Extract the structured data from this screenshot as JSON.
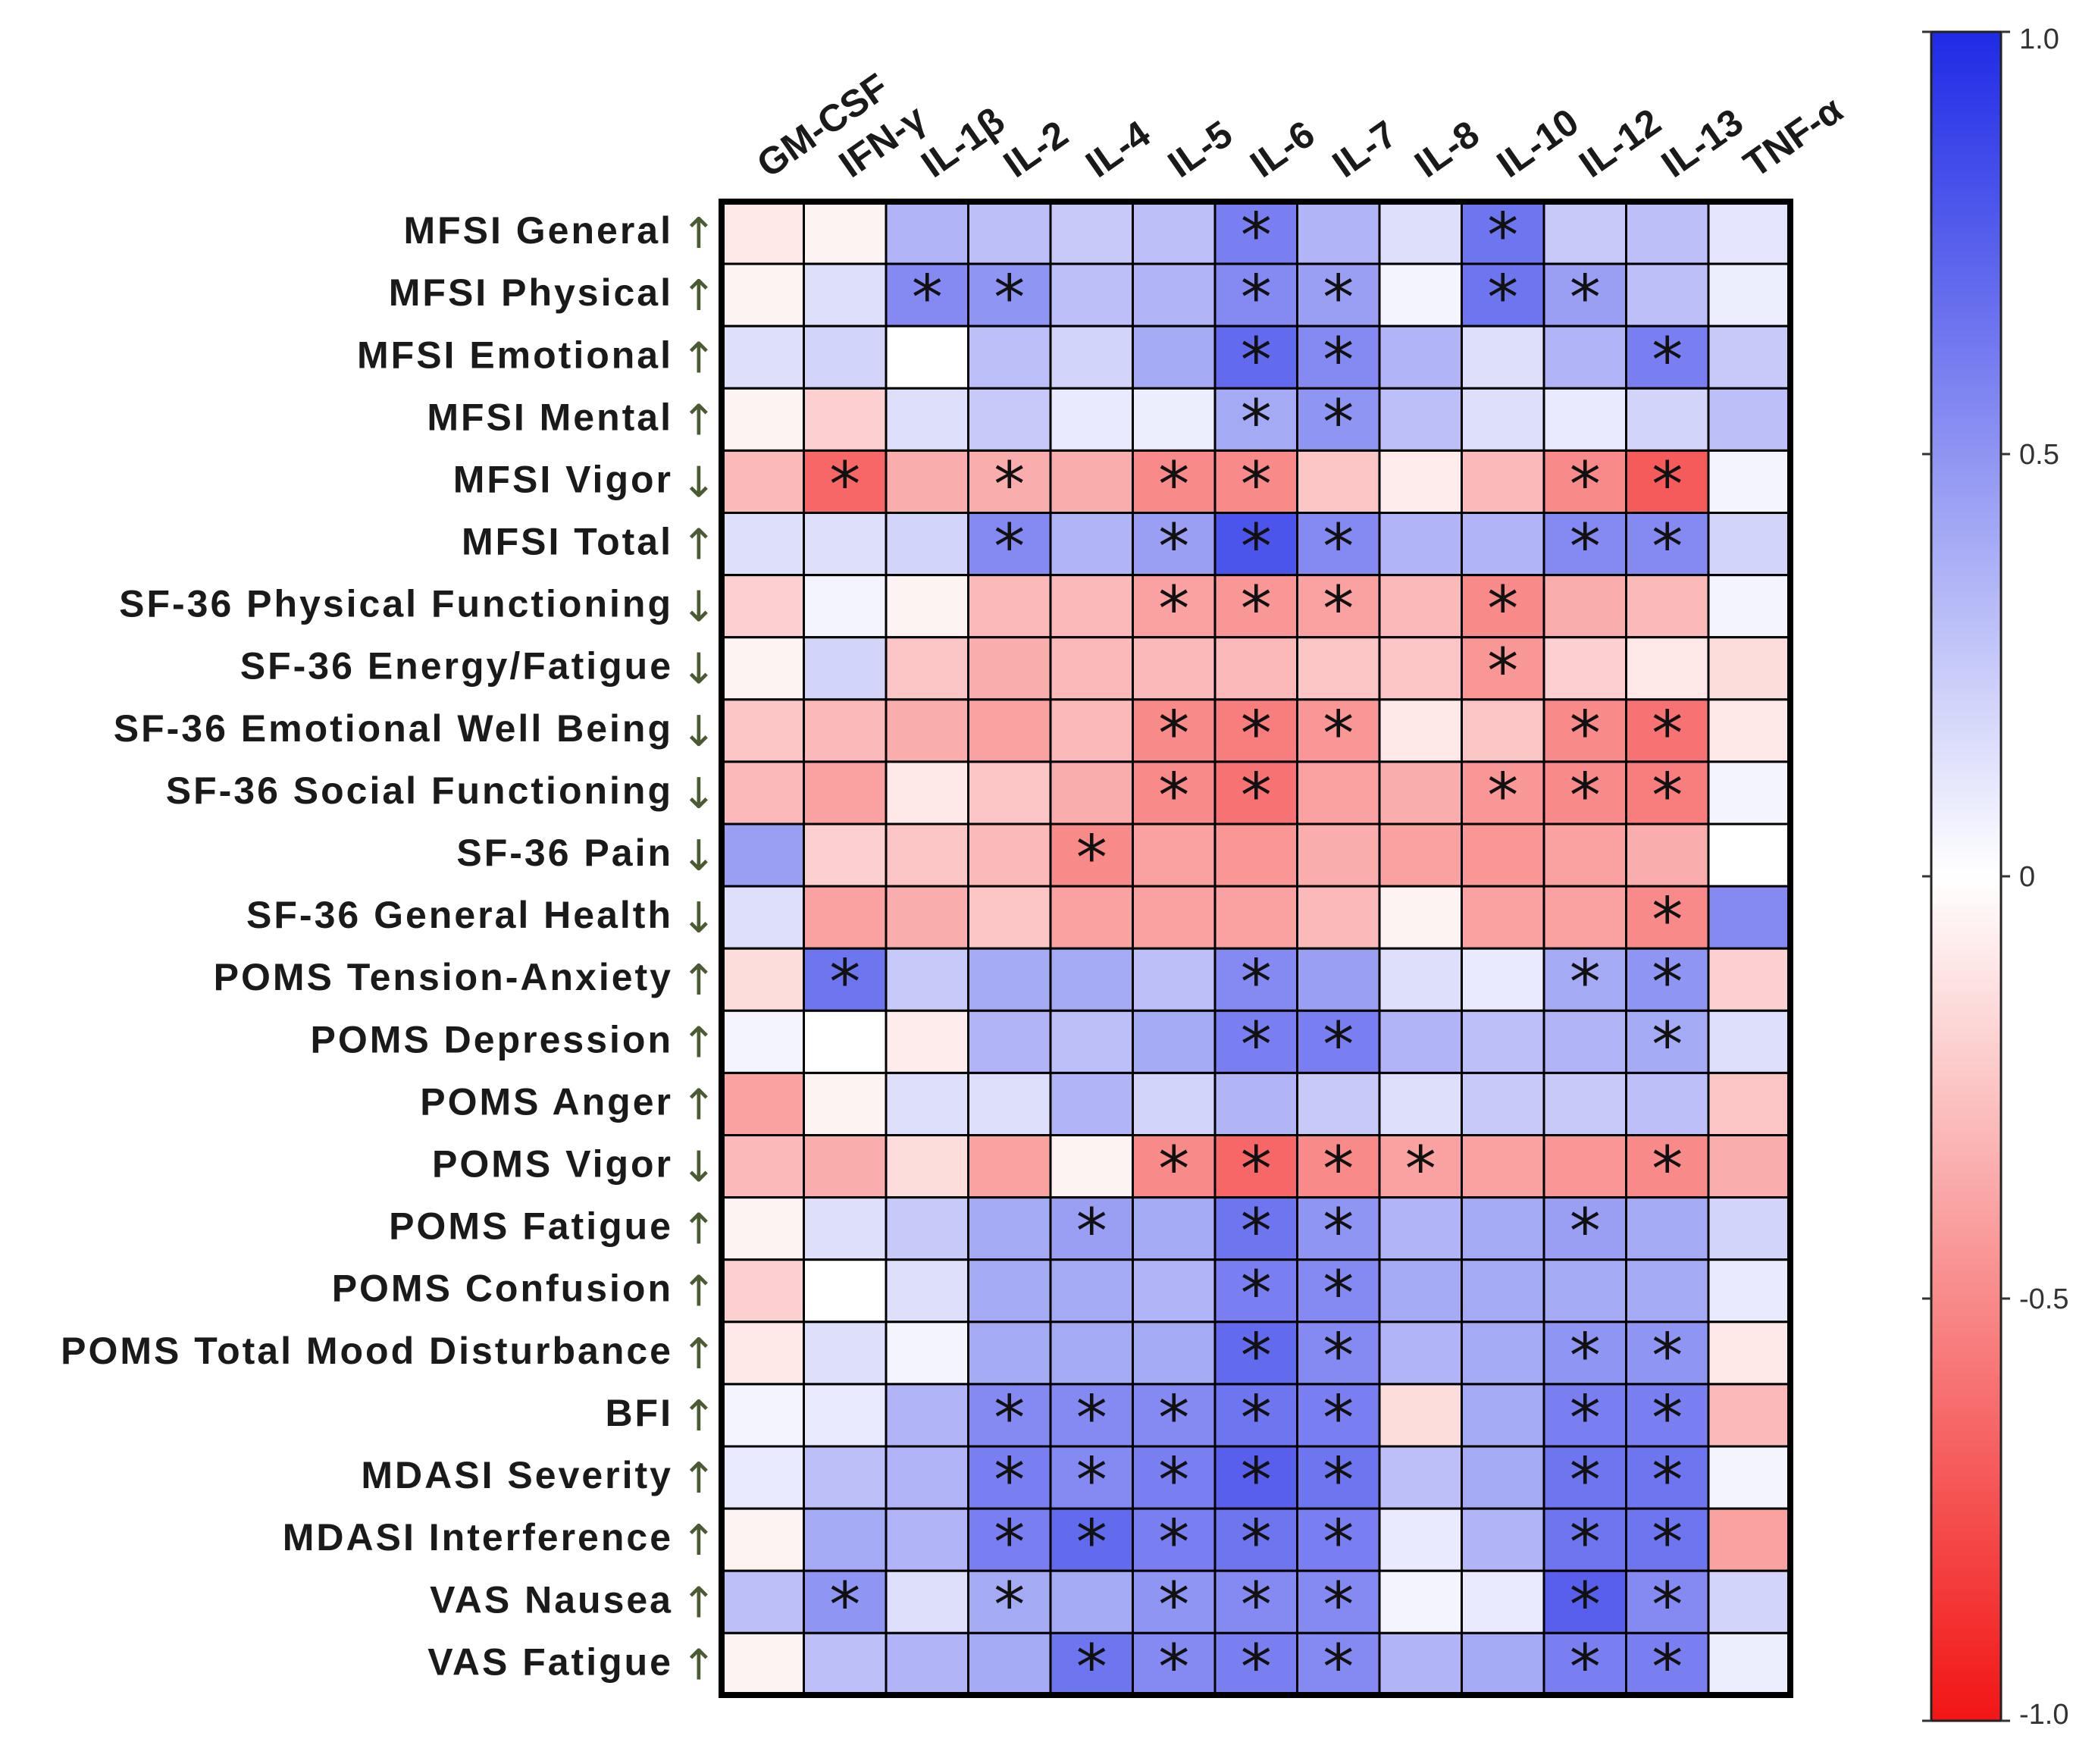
{
  "chart_data": {
    "type": "heatmap",
    "title": "",
    "columns": [
      "GM-CSF",
      "IFN-γ",
      "IL-1β",
      "IL-2",
      "IL-4",
      "IL-5",
      "IL-6",
      "IL-7",
      "IL-8",
      "IL-10",
      "IL-12",
      "IL-13",
      "TNF-α"
    ],
    "rows": [
      {
        "label": "MFSI General",
        "direction": "↑"
      },
      {
        "label": "MFSI Physical",
        "direction": "↑"
      },
      {
        "label": "MFSI Emotional",
        "direction": "↑"
      },
      {
        "label": "MFSI Mental",
        "direction": "↑"
      },
      {
        "label": "MFSI Vigor",
        "direction": "↓"
      },
      {
        "label": "MFSI Total",
        "direction": "↑"
      },
      {
        "label": "SF-36 Physical Functioning",
        "direction": "↓"
      },
      {
        "label": "SF-36 Energy/Fatigue",
        "direction": "↓"
      },
      {
        "label": "SF-36 Emotional Well Being",
        "direction": "↓"
      },
      {
        "label": "SF-36 Social Functioning",
        "direction": "↓"
      },
      {
        "label": "SF-36 Pain",
        "direction": "↓"
      },
      {
        "label": "SF-36 General Health",
        "direction": "↓"
      },
      {
        "label": "POMS Tension-Anxiety",
        "direction": "↑"
      },
      {
        "label": "POMS Depression",
        "direction": "↑"
      },
      {
        "label": "POMS Anger",
        "direction": "↑"
      },
      {
        "label": "POMS Vigor",
        "direction": "↓"
      },
      {
        "label": "POMS Fatigue",
        "direction": "↑"
      },
      {
        "label": "POMS Confusion",
        "direction": "↑"
      },
      {
        "label": "POMS Total Mood Disturbance",
        "direction": "↑"
      },
      {
        "label": "BFI",
        "direction": "↑"
      },
      {
        "label": "MDASI Severity",
        "direction": "↑"
      },
      {
        "label": "MDASI Interference",
        "direction": "↑"
      },
      {
        "label": "VAS Nausea",
        "direction": "↑"
      },
      {
        "label": "VAS Fatigue",
        "direction": "↑"
      }
    ],
    "values": [
      [
        -0.1,
        -0.05,
        0.35,
        0.3,
        0.25,
        0.3,
        0.6,
        0.35,
        0.15,
        0.65,
        0.25,
        0.3,
        0.12
      ],
      [
        -0.05,
        0.15,
        0.55,
        0.5,
        0.3,
        0.35,
        0.55,
        0.45,
        0.05,
        0.65,
        0.45,
        0.3,
        0.08
      ],
      [
        0.15,
        0.2,
        0.0,
        0.3,
        0.2,
        0.4,
        0.7,
        0.55,
        0.35,
        0.15,
        0.35,
        0.6,
        0.25
      ],
      [
        -0.05,
        -0.2,
        0.15,
        0.25,
        0.1,
        0.08,
        0.4,
        0.5,
        0.3,
        0.15,
        0.1,
        0.2,
        0.3
      ],
      [
        -0.3,
        -0.65,
        -0.35,
        -0.35,
        -0.35,
        -0.5,
        -0.5,
        -0.25,
        -0.08,
        -0.3,
        -0.5,
        -0.7,
        0.05
      ],
      [
        0.15,
        0.15,
        0.2,
        0.55,
        0.35,
        0.45,
        0.8,
        0.55,
        0.35,
        0.35,
        0.55,
        0.55,
        0.2
      ],
      [
        -0.2,
        0.05,
        -0.05,
        -0.3,
        -0.3,
        -0.4,
        -0.45,
        -0.4,
        -0.3,
        -0.5,
        -0.35,
        -0.3,
        0.05
      ],
      [
        -0.05,
        0.2,
        -0.25,
        -0.35,
        -0.3,
        -0.3,
        -0.3,
        -0.25,
        -0.25,
        -0.45,
        -0.2,
        -0.1,
        -0.15
      ],
      [
        -0.25,
        -0.3,
        -0.35,
        -0.4,
        -0.3,
        -0.5,
        -0.55,
        -0.45,
        -0.1,
        -0.25,
        -0.5,
        -0.6,
        -0.1
      ],
      [
        -0.3,
        -0.4,
        -0.1,
        -0.25,
        -0.35,
        -0.5,
        -0.6,
        -0.4,
        -0.35,
        -0.45,
        -0.5,
        -0.55,
        0.05
      ],
      [
        0.45,
        -0.2,
        -0.25,
        -0.3,
        -0.5,
        -0.4,
        -0.45,
        -0.35,
        -0.4,
        -0.45,
        -0.4,
        -0.35,
        0.0
      ],
      [
        0.15,
        -0.4,
        -0.35,
        -0.25,
        -0.4,
        -0.4,
        -0.4,
        -0.3,
        -0.05,
        -0.4,
        -0.4,
        -0.5,
        0.55
      ],
      [
        -0.15,
        0.65,
        0.25,
        0.4,
        0.4,
        0.3,
        0.55,
        0.45,
        0.15,
        0.1,
        0.4,
        0.5,
        -0.2
      ],
      [
        0.05,
        0.0,
        -0.08,
        0.35,
        0.3,
        0.4,
        0.6,
        0.6,
        0.35,
        0.3,
        0.35,
        0.4,
        0.15
      ],
      [
        -0.4,
        -0.05,
        0.15,
        0.15,
        0.35,
        0.2,
        0.35,
        0.25,
        0.15,
        0.25,
        0.25,
        0.3,
        -0.25
      ],
      [
        -0.3,
        -0.35,
        -0.15,
        -0.4,
        -0.05,
        -0.5,
        -0.65,
        -0.5,
        -0.4,
        -0.4,
        -0.45,
        -0.5,
        -0.35
      ],
      [
        -0.05,
        0.15,
        0.25,
        0.4,
        0.45,
        0.4,
        0.65,
        0.5,
        0.35,
        0.4,
        0.45,
        0.4,
        0.2
      ],
      [
        -0.2,
        0.0,
        0.15,
        0.4,
        0.4,
        0.35,
        0.6,
        0.55,
        0.4,
        0.4,
        0.4,
        0.4,
        0.1
      ],
      [
        -0.1,
        0.15,
        0.05,
        0.4,
        0.4,
        0.4,
        0.7,
        0.55,
        0.35,
        0.4,
        0.5,
        0.5,
        -0.1
      ],
      [
        0.05,
        0.1,
        0.35,
        0.55,
        0.55,
        0.55,
        0.65,
        0.6,
        -0.15,
        0.4,
        0.6,
        0.6,
        -0.3
      ],
      [
        0.1,
        0.3,
        0.35,
        0.6,
        0.55,
        0.6,
        0.75,
        0.65,
        0.3,
        0.4,
        0.65,
        0.65,
        0.05
      ],
      [
        -0.05,
        0.4,
        0.35,
        0.6,
        0.7,
        0.6,
        0.65,
        0.6,
        0.1,
        0.35,
        0.65,
        0.65,
        -0.4
      ],
      [
        0.3,
        0.5,
        0.15,
        0.4,
        0.4,
        0.5,
        0.55,
        0.55,
        0.05,
        0.1,
        0.75,
        0.55,
        0.2
      ],
      [
        -0.05,
        0.3,
        0.35,
        0.4,
        0.65,
        0.55,
        0.6,
        0.55,
        0.35,
        0.4,
        0.6,
        0.6,
        0.08
      ]
    ],
    "significant": [
      [
        6,
        9
      ],
      [
        2,
        3,
        6,
        7,
        9,
        10
      ],
      [
        6,
        7,
        11
      ],
      [
        6,
        7
      ],
      [
        1,
        3,
        5,
        6,
        10,
        11
      ],
      [
        3,
        5,
        6,
        7,
        10,
        11
      ],
      [
        5,
        6,
        7,
        9
      ],
      [
        9
      ],
      [
        5,
        6,
        7,
        10,
        11
      ],
      [
        5,
        6,
        9,
        10,
        11
      ],
      [
        4
      ],
      [
        11
      ],
      [
        1,
        6,
        10,
        11
      ],
      [
        6,
        7,
        11
      ],
      [],
      [
        5,
        6,
        7,
        8,
        11
      ],
      [
        4,
        6,
        7,
        10
      ],
      [
        6,
        7
      ],
      [
        6,
        7,
        10,
        11
      ],
      [
        3,
        4,
        5,
        6,
        7,
        10,
        11
      ],
      [
        3,
        4,
        5,
        6,
        7,
        10,
        11
      ],
      [
        3,
        4,
        5,
        6,
        7,
        10,
        11
      ],
      [
        1,
        3,
        5,
        6,
        7,
        10,
        11
      ],
      [
        4,
        5,
        6,
        7,
        10,
        11
      ]
    ],
    "significance_marker": "*",
    "colorbar": {
      "min": -1.0,
      "max": 1.0,
      "ticks": [
        "1.0",
        "0.5",
        "0",
        "-0.5",
        "-1.0"
      ],
      "tick_values": [
        1.0,
        0.5,
        0,
        -0.5,
        -1.0
      ]
    },
    "colors": {
      "positive": "#1f2ae6",
      "zero": "#ffffff",
      "negative": "#f21515",
      "cell_border": "#000000"
    }
  }
}
